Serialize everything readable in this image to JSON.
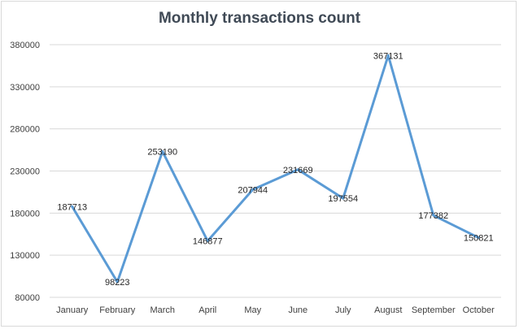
{
  "chart_data": {
    "type": "line",
    "title": "Monthly transactions count",
    "xlabel": "",
    "ylabel": "",
    "ylim": [
      80000,
      380000
    ],
    "yticks": [
      "80000",
      "130000",
      "180000",
      "230000",
      "280000",
      "330000",
      "380000"
    ],
    "categories": [
      "January",
      "February",
      "March",
      "April",
      "May",
      "June",
      "July",
      "August",
      "September",
      "October"
    ],
    "series": [
      {
        "values": [
          187713,
          98223,
          253190,
          146877,
          207944,
          231669,
          197554,
          367131,
          177382,
          150821
        ],
        "labels": [
          "187713",
          "98223",
          "253190",
          "146877",
          "207944",
          "231669",
          "197554",
          "367131",
          "177382",
          "150821"
        ],
        "color": "#5b9bd5"
      }
    ],
    "grid": true,
    "gridColor": "#d9d9d9",
    "legend": "none"
  }
}
